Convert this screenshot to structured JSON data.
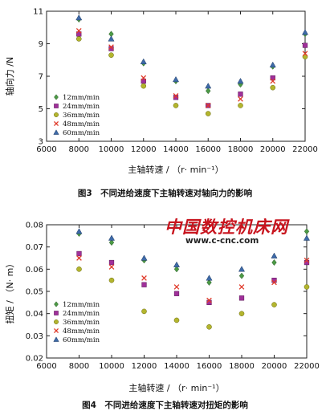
{
  "chart_data": [
    {
      "type": "scatter",
      "title": "",
      "caption": "图3　不同进给速度下主轴转速对轴向力的影响",
      "xlabel": "主轴转速 / （r· min⁻¹）",
      "ylabel": "轴向力 /N",
      "xlim": [
        6000,
        22000
      ],
      "ylim": [
        3,
        11
      ],
      "xticks": [
        "6000",
        "8000",
        "10000",
        "12000",
        "14000",
        "16000",
        "18000",
        "20000",
        "22000"
      ],
      "yticks": [
        "3",
        "5",
        "7",
        "9",
        "11"
      ],
      "legend_position": "bottom-left",
      "x": [
        8000,
        10000,
        12000,
        14000,
        16000,
        18000,
        20000,
        22000
      ],
      "series": [
        {
          "name": "12mm/min",
          "marker": "diamond",
          "color": "#4c9a46",
          "values": [
            10.5,
            9.6,
            7.8,
            6.7,
            6.1,
            6.5,
            7.6,
            9.6
          ]
        },
        {
          "name": "24mm/min",
          "marker": "square",
          "color": "#a0309a",
          "values": [
            9.6,
            8.7,
            6.7,
            5.7,
            5.2,
            5.9,
            6.9,
            8.9
          ]
        },
        {
          "name": "36mm/min",
          "marker": "circle",
          "color": "#b3b52e",
          "values": [
            9.3,
            8.3,
            6.4,
            5.2,
            4.7,
            5.2,
            6.3,
            8.2
          ]
        },
        {
          "name": "48mm/min",
          "marker": "x",
          "color": "#e03a2a",
          "values": [
            9.8,
            8.8,
            6.9,
            5.8,
            5.2,
            5.6,
            6.7,
            8.4
          ]
        },
        {
          "name": "60mm/min",
          "marker": "triangle",
          "color": "#3e6aa8",
          "values": [
            10.6,
            9.3,
            7.9,
            6.8,
            6.4,
            6.7,
            7.7,
            9.7
          ]
        }
      ]
    },
    {
      "type": "scatter",
      "title": "",
      "caption": "图4　不同进给速度下主轴转速对扭矩的影响",
      "xlabel": "主轴转速 / （r· min⁻¹）",
      "ylabel": "扭矩 / （N· m）",
      "xlim": [
        6000,
        22000
      ],
      "ylim": [
        0.02,
        0.08
      ],
      "xticks": [
        "6000",
        "8000",
        "10000",
        "12000",
        "14000",
        "16000",
        "18000",
        "20000",
        "22000"
      ],
      "yticks": [
        "0.02",
        "0.03",
        "0.04",
        "0.05",
        "0.06",
        "0.07",
        "0.08"
      ],
      "legend_position": "bottom-left",
      "x": [
        8000,
        10000,
        12000,
        14000,
        16000,
        18000,
        20000,
        22000
      ],
      "series": [
        {
          "name": "12mm/min",
          "marker": "diamond",
          "color": "#4c9a46",
          "values": [
            0.076,
            0.072,
            0.064,
            0.06,
            0.054,
            0.057,
            0.063,
            0.077
          ]
        },
        {
          "name": "24mm/min",
          "marker": "square",
          "color": "#a0309a",
          "values": [
            0.067,
            0.063,
            0.053,
            0.049,
            0.045,
            0.047,
            0.055,
            0.063
          ]
        },
        {
          "name": "36mm/min",
          "marker": "circle",
          "color": "#b3b52e",
          "values": [
            0.06,
            0.055,
            0.041,
            0.037,
            0.034,
            0.04,
            0.044,
            0.052
          ]
        },
        {
          "name": "48mm/min",
          "marker": "x",
          "color": "#e03a2a",
          "values": [
            0.065,
            0.061,
            0.056,
            0.052,
            0.046,
            0.052,
            0.054,
            0.064
          ]
        },
        {
          "name": "60mm/min",
          "marker": "triangle",
          "color": "#3e6aa8",
          "values": [
            0.077,
            0.074,
            0.065,
            0.062,
            0.056,
            0.06,
            0.066,
            0.074
          ]
        }
      ]
    }
  ],
  "watermark": {
    "brand": "中国数控机床网",
    "url": "www.c-cnc.com",
    "color": "#c8141e"
  }
}
